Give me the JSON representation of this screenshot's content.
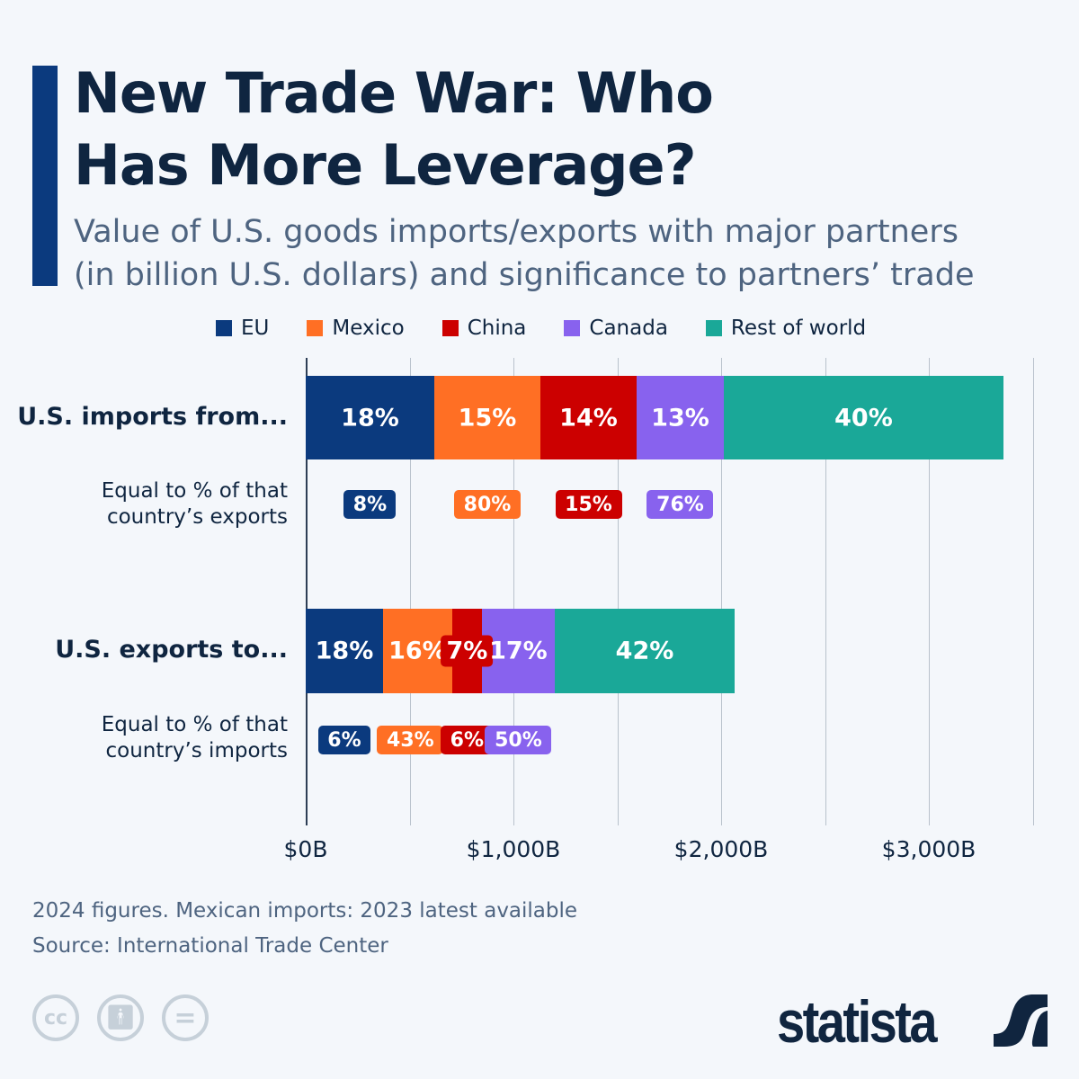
{
  "title_lines": [
    "New Trade War: Who",
    "Has More Leverage?"
  ],
  "subtitle_lines": [
    "Value of U.S. goods imports/exports with major partners",
    "(in billion U.S. dollars) and significance to partners’ trade"
  ],
  "colors": {
    "EU": "#0b3a7e",
    "Mexico": "#ff6f24",
    "China": "#cc0000",
    "Canada": "#8862ee",
    "Rest of world": "#1aa898",
    "accent": "#0b3a7e"
  },
  "chart_data": {
    "type": "bar",
    "orientation": "horizontal",
    "stacked": true,
    "categories": [
      "U.S. imports from...",
      "U.S. exports to..."
    ],
    "series": [
      {
        "name": "EU",
        "values": [
          619,
          372
        ],
        "share_labels": [
          "18%",
          "18%"
        ],
        "partner_share": [
          "8%",
          "6%"
        ]
      },
      {
        "name": "Mexico",
        "values": [
          511,
          333
        ],
        "share_labels": [
          "15%",
          "16%"
        ],
        "partner_share": [
          "80%",
          "43%"
        ]
      },
      {
        "name": "China",
        "values": [
          463,
          143
        ],
        "share_labels": [
          "14%",
          "7%"
        ],
        "partner_share": [
          "15%",
          "6%"
        ]
      },
      {
        "name": "Canada",
        "values": [
          420,
          351
        ],
        "share_labels": [
          "13%",
          "17%"
        ],
        "partner_share": [
          "76%",
          "50%"
        ]
      },
      {
        "name": "Rest of world",
        "values": [
          1346,
          866
        ],
        "share_labels": [
          "40%",
          "42%"
        ],
        "partner_share": [
          null,
          null
        ]
      }
    ],
    "sub_labels": [
      [
        "Equal to % of that",
        "country’s exports"
      ],
      [
        "Equal to % of that",
        "country’s imports"
      ]
    ],
    "xlim": [
      0,
      3500
    ],
    "xticks": [
      0,
      1000,
      2000,
      3000
    ],
    "xtick_labels": [
      "$0B",
      "$1,000B",
      "$2,000B",
      "$3,000B"
    ],
    "grid": true,
    "legend_position": "top"
  },
  "notes": [
    "2024 figures. Mexican imports: 2023 latest available",
    "Source: International Trade Center"
  ],
  "license_icons": [
    "cc-icon",
    "attribution-icon",
    "no-derivatives-icon"
  ],
  "brand": "statista"
}
